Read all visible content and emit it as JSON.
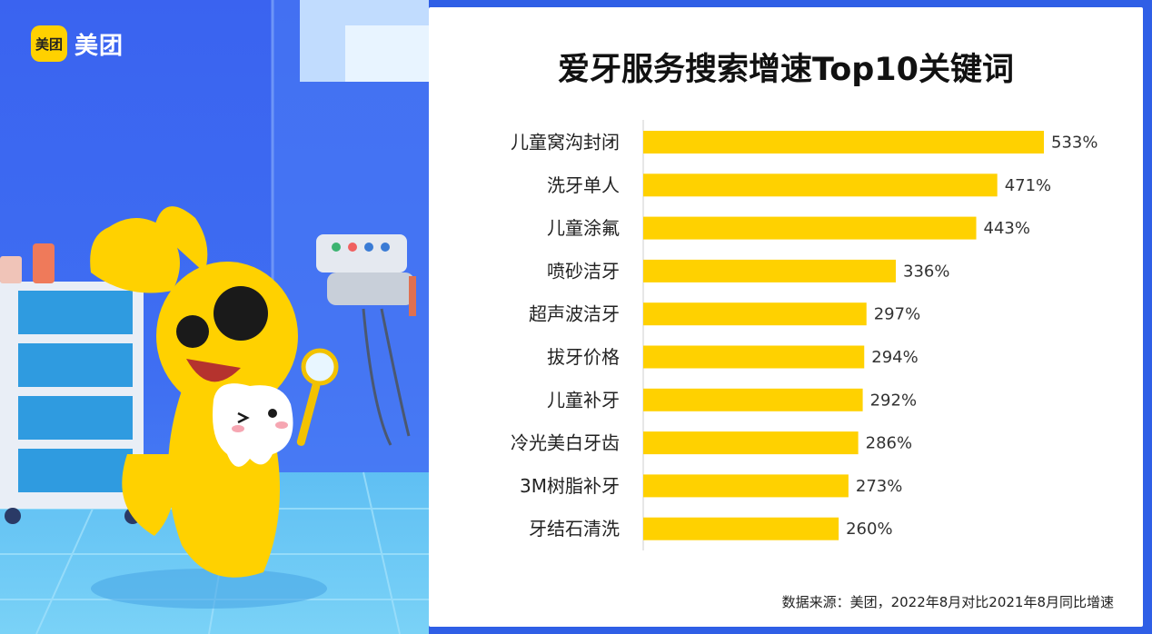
{
  "brand": {
    "badge": "美团",
    "name": "美团"
  },
  "chart_data": {
    "type": "bar",
    "orientation": "horizontal",
    "title": "爱牙服务搜索增速Top10关键词",
    "categories": [
      "儿童窝沟封闭",
      "洗牙单人",
      "儿童涂氟",
      "喷砂洁牙",
      "超声波洁牙",
      "拔牙价格",
      "儿童补牙",
      "冷光美白牙齿",
      "3M树脂补牙",
      "牙结石清洗"
    ],
    "values": [
      533,
      471,
      443,
      336,
      297,
      294,
      292,
      286,
      273,
      260
    ],
    "value_labels": [
      "533%",
      "471%",
      "443%",
      "336%",
      "297%",
      "294%",
      "292%",
      "286%",
      "273%",
      "260%"
    ],
    "unit": "%",
    "xlim": [
      0,
      533
    ],
    "bar_color": "#ffd100",
    "grid": false,
    "legend": "none"
  },
  "footnote": "数据来源：美团，2022年8月对比2021年8月同比增速"
}
